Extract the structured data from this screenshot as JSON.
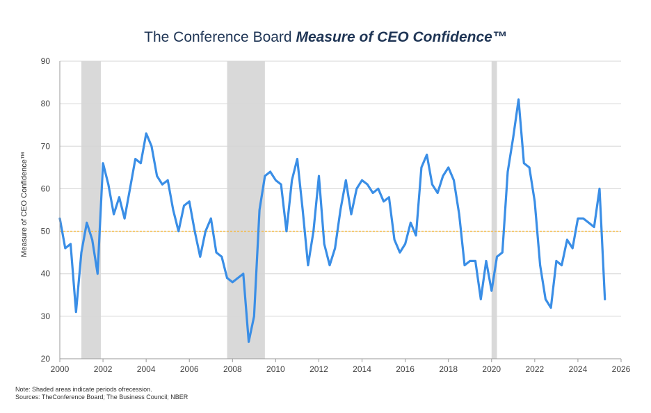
{
  "chart_data": {
    "type": "line",
    "title": "The Conference Board",
    "title_emphasis": "Measure of CEO Confidence™",
    "ylabel": "Measure of CEO Confidence™",
    "xlabel": "",
    "xlim": [
      2000,
      2026
    ],
    "ylim": [
      20,
      90
    ],
    "y_ticks": [
      20,
      30,
      40,
      50,
      60,
      70,
      80,
      90
    ],
    "x_ticks": [
      2000,
      2002,
      2004,
      2006,
      2008,
      2010,
      2012,
      2014,
      2016,
      2018,
      2020,
      2022,
      2024,
      2026
    ],
    "grid": "horizontal",
    "reference_line": {
      "y": 50,
      "color": "#f5b942",
      "style": "dashed"
    },
    "recessions": [
      [
        2001.0,
        2001.9
      ],
      [
        2007.75,
        2009.5
      ],
      [
        2020.0,
        2020.25
      ]
    ],
    "line_color": "#3a8ee6",
    "series": [
      {
        "x": [
          2000.0,
          2000.25,
          2000.5,
          2000.75,
          2001.0,
          2001.25,
          2001.5,
          2001.75,
          2002.0,
          2002.25,
          2002.5,
          2002.75,
          2003.0,
          2003.25,
          2003.5,
          2003.75,
          2004.0,
          2004.25,
          2004.5,
          2004.75,
          2005.0,
          2005.25,
          2005.5,
          2005.75,
          2006.0,
          2006.25,
          2006.5,
          2006.75,
          2007.0,
          2007.25,
          2007.5,
          2007.75,
          2008.0,
          2008.25,
          2008.5,
          2008.75,
          2009.0,
          2009.25,
          2009.5,
          2009.75,
          2010.0,
          2010.25,
          2010.5,
          2010.75,
          2011.0,
          2011.25,
          2011.5,
          2011.75,
          2012.0,
          2012.25,
          2012.5,
          2012.75,
          2013.0,
          2013.25,
          2013.5,
          2013.75,
          2014.0,
          2014.25,
          2014.5,
          2014.75,
          2015.0,
          2015.25,
          2015.5,
          2015.75,
          2016.0,
          2016.25,
          2016.5,
          2016.75,
          2017.0,
          2017.25,
          2017.5,
          2017.75,
          2018.0,
          2018.25,
          2018.5,
          2018.75,
          2019.0,
          2019.25,
          2019.5,
          2019.75,
          2020.0,
          2020.25,
          2020.5,
          2020.75,
          2021.0,
          2021.25,
          2021.5,
          2021.75,
          2022.0,
          2022.25,
          2022.5,
          2022.75,
          2023.0,
          2023.25,
          2023.5,
          2023.75,
          2024.0,
          2024.25,
          2024.5,
          2024.75,
          2025.0,
          2025.25
        ],
        "values": [
          53,
          46,
          47,
          31,
          45,
          52,
          48,
          40,
          66,
          61,
          54,
          58,
          53,
          60,
          67,
          66,
          73,
          70,
          63,
          61,
          62,
          55,
          50,
          56,
          57,
          50,
          44,
          50,
          53,
          45,
          44,
          39,
          38,
          39,
          40,
          24,
          30,
          55,
          63,
          64,
          62,
          61,
          50,
          62,
          67,
          55,
          42,
          50,
          63,
          47,
          42,
          46,
          55,
          62,
          54,
          60,
          62,
          61,
          59,
          60,
          57,
          58,
          48,
          45,
          47,
          52,
          49,
          65,
          68,
          61,
          59,
          63,
          65,
          62,
          54,
          42,
          43,
          43,
          34,
          43,
          36,
          44,
          45,
          64,
          72,
          81,
          66,
          65,
          57,
          42,
          34,
          32,
          43,
          42,
          48,
          46,
          53,
          53,
          52,
          51,
          60,
          34
        ]
      }
    ]
  },
  "notes": {
    "line1": "Note: Shaded areas indicate periods ofrecession.",
    "line2": "Sources: TheConference Board; The Business Council; NBER"
  }
}
